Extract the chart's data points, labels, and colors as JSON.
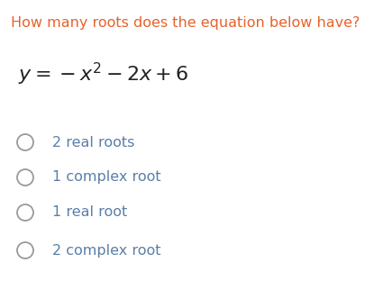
{
  "title": "How many roots does the equation below have?",
  "title_color": "#E8622A",
  "title_fontsize": 11.5,
  "equation_fontsize": 16,
  "equation_color": "#222222",
  "options": [
    "2 real roots",
    "1 complex root",
    "1 real root",
    "2 complex root"
  ],
  "option_fontsize": 11.5,
  "option_color": "#5a7fa8",
  "circle_color": "#9a9a9a",
  "background_color": "#ffffff",
  "fig_width": 4.06,
  "fig_height": 3.22,
  "dpi": 100
}
